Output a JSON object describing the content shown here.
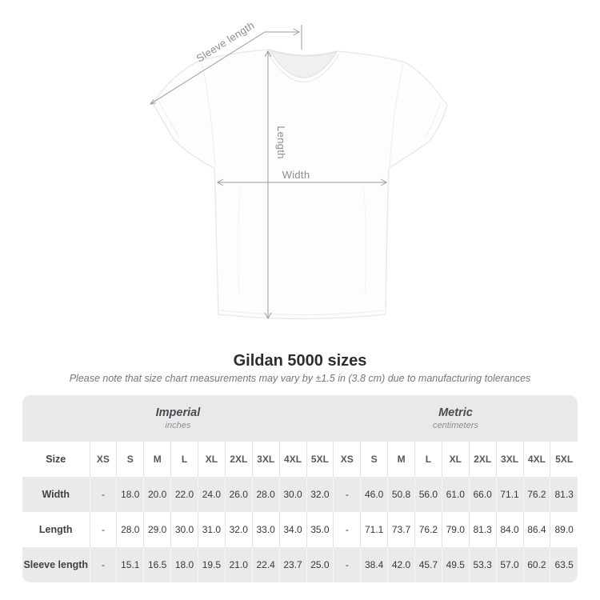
{
  "diagram": {
    "labels": {
      "sleeve": "Sleeve length",
      "length": "Length",
      "width": "Width"
    }
  },
  "title": "Gildan 5000 sizes",
  "subtitle": "Please note that size chart measurements may vary by ±1.5 in (3.8 cm) due to manufacturing tolerances",
  "table": {
    "groups": [
      {
        "name": "Imperial",
        "unit": "inches"
      },
      {
        "name": "Metric",
        "unit": "centimeters"
      }
    ],
    "size_header": "Size",
    "sizes": [
      "XS",
      "S",
      "M",
      "L",
      "XL",
      "2XL",
      "3XL",
      "4XL",
      "5XL"
    ],
    "rows": [
      {
        "label": "Width",
        "imperial": [
          "-",
          "18.0",
          "20.0",
          "22.0",
          "24.0",
          "26.0",
          "28.0",
          "30.0",
          "32.0"
        ],
        "metric": [
          "-",
          "46.0",
          "50.8",
          "56.0",
          "61.0",
          "66.0",
          "71.1",
          "76.2",
          "81.3"
        ]
      },
      {
        "label": "Length",
        "imperial": [
          "-",
          "28.0",
          "29.0",
          "30.0",
          "31.0",
          "32.0",
          "33.0",
          "34.0",
          "35.0"
        ],
        "metric": [
          "-",
          "71.1",
          "73.7",
          "76.2",
          "79.0",
          "81.3",
          "84.0",
          "86.4",
          "89.0"
        ]
      },
      {
        "label": "Sleeve length",
        "imperial": [
          "-",
          "15.1",
          "16.5",
          "18.0",
          "19.5",
          "21.0",
          "22.4",
          "23.7",
          "25.0"
        ],
        "metric": [
          "-",
          "38.4",
          "42.0",
          "45.7",
          "49.5",
          "53.3",
          "57.0",
          "60.2",
          "63.5"
        ]
      }
    ]
  },
  "colors": {
    "measure_line": "#9b9b9b",
    "band_bg": "#e9e9e9",
    "stripe_bg": "#eaeaea",
    "title_text": "#2d2d2d",
    "subtitle_text": "#757575"
  },
  "chart_data": {
    "type": "table",
    "title": "Gildan 5000 sizes",
    "note": "Please note that size chart measurements may vary by ±1.5 in (3.8 cm) due to manufacturing tolerances",
    "unit_groups": [
      "Imperial (inches)",
      "Metric (centimeters)"
    ],
    "sizes": [
      "XS",
      "S",
      "M",
      "L",
      "XL",
      "2XL",
      "3XL",
      "4XL",
      "5XL"
    ],
    "rows": [
      {
        "measurement": "Width",
        "imperial_in": [
          null,
          18.0,
          20.0,
          22.0,
          24.0,
          26.0,
          28.0,
          30.0,
          32.0
        ],
        "metric_cm": [
          null,
          46.0,
          50.8,
          56.0,
          61.0,
          66.0,
          71.1,
          76.2,
          81.3
        ]
      },
      {
        "measurement": "Length",
        "imperial_in": [
          null,
          28.0,
          29.0,
          30.0,
          31.0,
          32.0,
          33.0,
          34.0,
          35.0
        ],
        "metric_cm": [
          null,
          71.1,
          73.7,
          76.2,
          79.0,
          81.3,
          84.0,
          86.4,
          89.0
        ]
      },
      {
        "measurement": "Sleeve length",
        "imperial_in": [
          null,
          15.1,
          16.5,
          18.0,
          19.5,
          21.0,
          22.4,
          23.7,
          25.0
        ],
        "metric_cm": [
          null,
          38.4,
          42.0,
          45.7,
          49.5,
          53.3,
          57.0,
          60.2,
          63.5
        ]
      }
    ]
  }
}
